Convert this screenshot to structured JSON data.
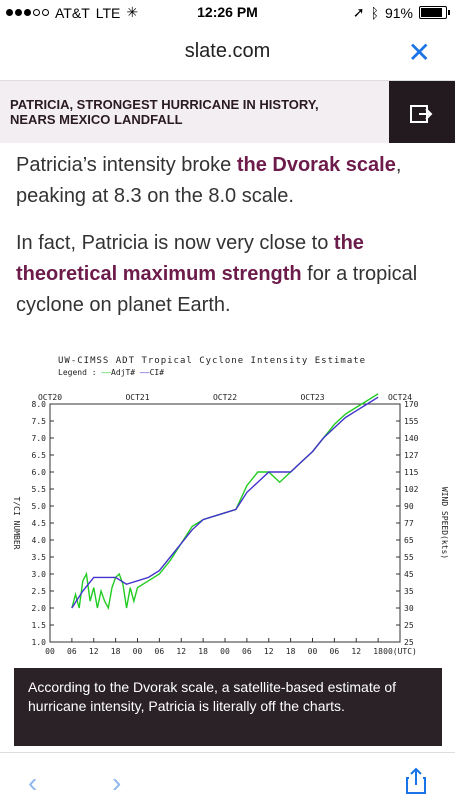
{
  "status": {
    "carrier": "AT&T",
    "network": "LTE",
    "time": "12:26 PM",
    "battery": "91%"
  },
  "browser": {
    "domain": "slate.com",
    "close_icon": "close-icon"
  },
  "banner": {
    "title": "PATRICIA, STRONGEST HURRICANE IN HISTORY, NEARS MEXICO LANDFALL",
    "share_icon": "share-out-icon"
  },
  "article": {
    "p1_prefix": "Patricia’s intensity broke ",
    "p1_link": "the Dvorak scale",
    "p1_suffix": ", peaking at 8.3 on the 8.0 scale.",
    "p2_prefix": "In fact, Patricia is now very close to ",
    "p2_link": "the theoretical maximum strength",
    "p2_suffix": " for a tropical cyclone on planet Earth."
  },
  "chart_data": {
    "type": "line",
    "title": "UW-CIMSS ADT Tropical Cyclone Intensity Estimate",
    "legend_label": "Legend :",
    "series": [
      {
        "name": "AdjT#",
        "color": "#22cc22",
        "x": [
          12,
          14,
          16,
          18,
          20,
          22,
          24,
          26,
          28,
          30,
          32,
          34,
          36,
          38,
          40,
          42,
          44,
          46,
          48,
          54,
          60,
          66,
          72,
          78,
          84,
          90,
          96,
          102,
          108,
          114,
          120,
          126,
          132,
          138,
          144,
          150,
          156,
          162,
          168,
          174,
          180
        ],
        "y": [
          2.0,
          2.4,
          2.0,
          2.8,
          3.0,
          2.2,
          2.6,
          2.0,
          2.5,
          2.2,
          2.0,
          2.6,
          2.9,
          3.0,
          2.7,
          2.0,
          2.6,
          2.2,
          2.6,
          2.8,
          3.0,
          3.4,
          3.9,
          4.4,
          4.6,
          4.7,
          4.8,
          4.9,
          5.6,
          6.0,
          6.0,
          5.7,
          6.0,
          6.3,
          6.6,
          7.0,
          7.4,
          7.7,
          7.9,
          8.1,
          8.3
        ]
      },
      {
        "name": "CI#",
        "color": "#4433cc",
        "x": [
          12,
          18,
          24,
          30,
          36,
          42,
          48,
          54,
          60,
          66,
          72,
          78,
          84,
          90,
          96,
          102,
          108,
          114,
          120,
          126,
          132,
          138,
          144,
          150,
          156,
          162,
          168,
          174,
          180
        ],
        "y": [
          2.0,
          2.5,
          2.9,
          2.9,
          2.9,
          2.7,
          2.8,
          2.9,
          3.1,
          3.5,
          3.9,
          4.3,
          4.6,
          4.7,
          4.8,
          4.9,
          5.4,
          5.7,
          6.0,
          6.0,
          6.0,
          6.3,
          6.6,
          7.0,
          7.3,
          7.6,
          7.8,
          8.0,
          8.2
        ]
      }
    ],
    "top_dates": [
      "OCT20",
      "OCT21",
      "OCT22",
      "OCT23",
      "OCT24"
    ],
    "x_ticks": [
      "00",
      "06",
      "12",
      "18",
      "00",
      "06",
      "12",
      "18",
      "00",
      "06",
      "12",
      "18",
      "00",
      "06",
      "12",
      "18",
      "00(UTC)"
    ],
    "ylabel": "T/CI NUMBER",
    "y_ticks": [
      "8.0",
      "7.5",
      "7.0",
      "6.5",
      "6.0",
      "5.5",
      "5.0",
      "4.5",
      "4.0",
      "3.5",
      "3.0",
      "2.5",
      "2.0",
      "1.5",
      "1.0"
    ],
    "right_ylabel": "WIND SPEED(kts)",
    "right_ticks": [
      "170",
      "155",
      "140",
      "127",
      "115",
      "102",
      "90",
      "77",
      "65",
      "55",
      "45",
      "35",
      "30",
      "25",
      "25"
    ],
    "ylim": [
      1.0,
      8.0
    ],
    "xlim": [
      0,
      192
    ]
  },
  "caption": {
    "text": "According to the Dvorak scale, a satellite-based estimate of hurricane intensity, Patricia is literally off the charts."
  },
  "toolbar": {
    "back_icon": "back-chevron-icon",
    "forward_icon": "forward-chevron-icon",
    "share_icon": "share-icon"
  }
}
